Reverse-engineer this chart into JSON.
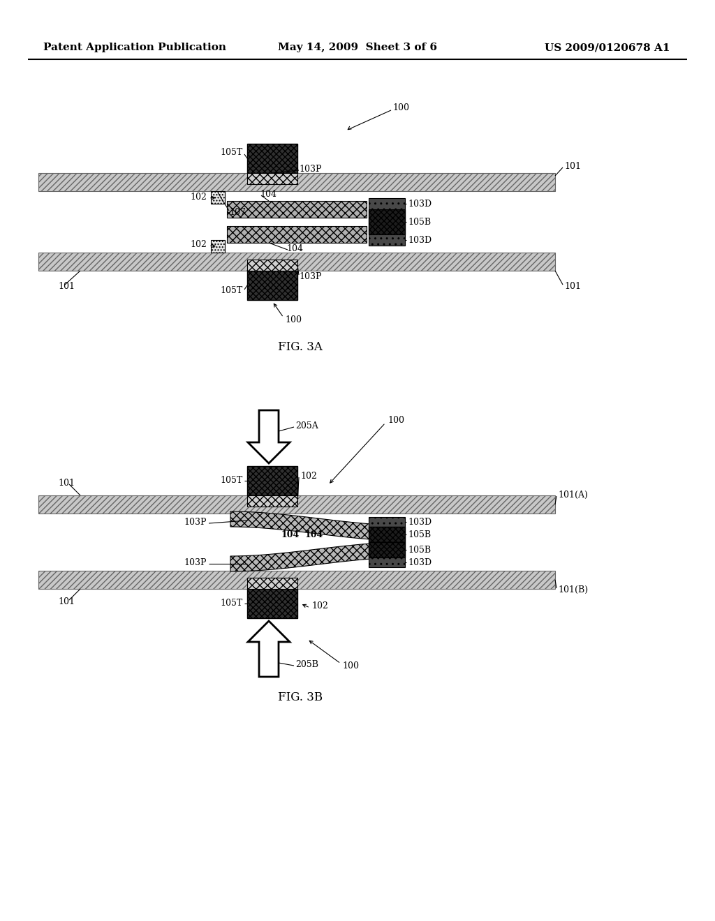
{
  "page_title_left": "Patent Application Publication",
  "page_title_mid": "May 14, 2009  Sheet 3 of 6",
  "page_title_right": "US 2009/0120678 A1",
  "fig3a_title": "FIG. 3A",
  "fig3b_title": "FIG. 3B",
  "bg_color": "#ffffff"
}
